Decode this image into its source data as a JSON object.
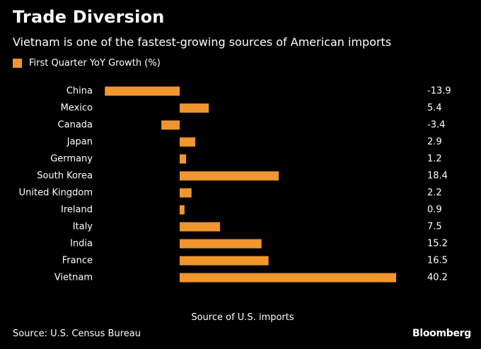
{
  "chart_data": {
    "type": "bar",
    "orientation": "horizontal",
    "title": "Trade Diversion",
    "subtitle": "Vietnam is one of the fastest-growing sources of American imports",
    "legend": [
      "First Quarter YoY Growth (%)"
    ],
    "categories": [
      "China",
      "Mexico",
      "Canada",
      "Japan",
      "Germany",
      "South Korea",
      "United Kingdom",
      "Ireland",
      "Italy",
      "India",
      "France",
      "Vietnam"
    ],
    "values": [
      -13.9,
      5.4,
      -3.4,
      2.9,
      1.2,
      18.4,
      2.2,
      0.9,
      7.5,
      15.2,
      16.5,
      40.2
    ],
    "value_labels": [
      "-13.9",
      "5.4",
      "-3.4",
      "2.9",
      "1.2",
      "18.4",
      "2.2",
      "0.9",
      "7.5",
      "15.2",
      "16.5",
      "40.2"
    ],
    "xlabel": "Source of U.S. imports",
    "ylabel": "",
    "xlim": [
      -14,
      40.2
    ],
    "grid": false,
    "bar_color": "#f0962e"
  },
  "footer": {
    "source": "Source: U.S. Census Bureau",
    "brand": "Bloomberg"
  }
}
